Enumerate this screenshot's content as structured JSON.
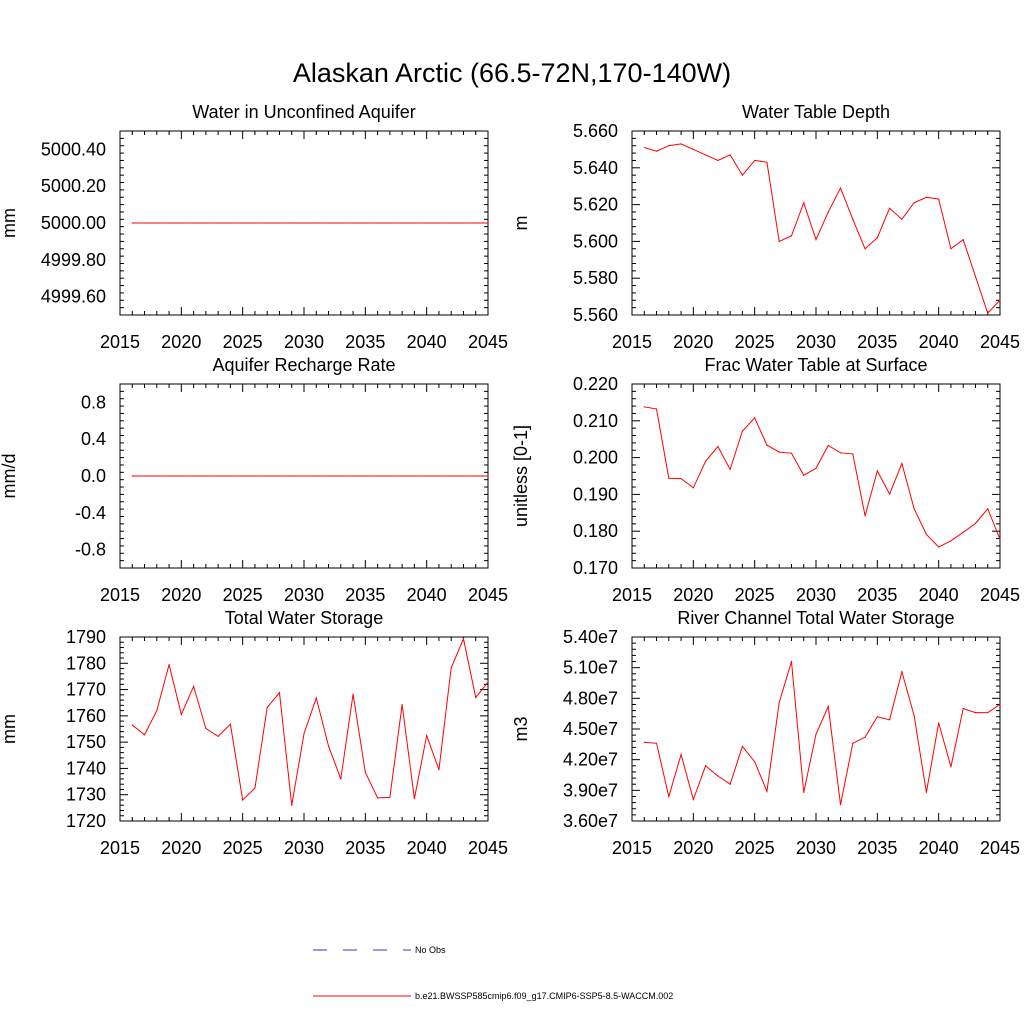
{
  "figure": {
    "title": "Alaskan Arctic (66.5-72N,170-140W)",
    "legend": [
      {
        "label": "No Obs",
        "color": "#3a3aa8",
        "style": "dashed"
      },
      {
        "label": "b.e21.BWSSP585cmip6.f09_g17.CMIP6-SSP5-8.5-WACCM.002",
        "color": "#ff0000",
        "style": "solid"
      }
    ]
  },
  "chart_data": [
    {
      "type": "line",
      "title": "Water in Unconfined Aquifer",
      "ylabel": "mm",
      "xlabel": "",
      "xlim": [
        2015,
        2045
      ],
      "ylim": [
        4999.5,
        5000.5
      ],
      "xticks": [
        2015,
        2020,
        2025,
        2030,
        2035,
        2040,
        2045
      ],
      "yticks": [
        4999.6,
        4999.8,
        5000.0,
        5000.2,
        5000.4
      ],
      "ytick_labels": [
        "4999.60",
        "4999.80",
        "5000.00",
        "5000.20",
        "5000.40"
      ],
      "x": [
        2016,
        2017,
        2018,
        2019,
        2020,
        2021,
        2022,
        2023,
        2024,
        2025,
        2026,
        2027,
        2028,
        2029,
        2030,
        2031,
        2032,
        2033,
        2034,
        2035,
        2036,
        2037,
        2038,
        2039,
        2040,
        2041,
        2042,
        2043,
        2044,
        2045
      ],
      "series": [
        {
          "color": "#ff0000",
          "values": [
            5000,
            5000,
            5000,
            5000,
            5000,
            5000,
            5000,
            5000,
            5000,
            5000,
            5000,
            5000,
            5000,
            5000,
            5000,
            5000,
            5000,
            5000,
            5000,
            5000,
            5000,
            5000,
            5000,
            5000,
            5000,
            5000,
            5000,
            5000,
            5000,
            5000
          ]
        }
      ]
    },
    {
      "type": "line",
      "title": "Water Table Depth",
      "ylabel": "m",
      "xlabel": "",
      "xlim": [
        2015,
        2045
      ],
      "ylim": [
        5.56,
        5.66
      ],
      "xticks": [
        2015,
        2020,
        2025,
        2030,
        2035,
        2040,
        2045
      ],
      "yticks": [
        5.56,
        5.58,
        5.6,
        5.62,
        5.64,
        5.66
      ],
      "ytick_labels": [
        "5.560",
        "5.580",
        "5.600",
        "5.620",
        "5.640",
        "5.660"
      ],
      "x": [
        2016,
        2017,
        2018,
        2019,
        2020,
        2021,
        2022,
        2023,
        2024,
        2025,
        2026,
        2027,
        2028,
        2029,
        2030,
        2031,
        2032,
        2033,
        2034,
        2035,
        2036,
        2037,
        2038,
        2039,
        2040,
        2041,
        2042,
        2043,
        2044,
        2045
      ],
      "series": [
        {
          "color": "#ff0000",
          "values": [
            5.651,
            5.649,
            5.652,
            5.653,
            5.65,
            5.647,
            5.644,
            5.647,
            5.636,
            5.644,
            5.643,
            5.6,
            5.603,
            5.621,
            5.601,
            5.616,
            5.629,
            5.612,
            5.596,
            5.602,
            5.618,
            5.612,
            5.621,
            5.624,
            5.623,
            5.596,
            5.601,
            5.581,
            5.561,
            5.568
          ]
        }
      ]
    },
    {
      "type": "line",
      "title": "Aquifer Recharge Rate",
      "ylabel": "mm/d",
      "xlabel": "",
      "xlim": [
        2015,
        2045
      ],
      "ylim": [
        -1.0,
        1.0
      ],
      "xticks": [
        2015,
        2020,
        2025,
        2030,
        2035,
        2040,
        2045
      ],
      "yticks": [
        -0.8,
        -0.4,
        0.0,
        0.4,
        0.8
      ],
      "ytick_labels": [
        "-0.8",
        "-0.4",
        "0.0",
        "0.4",
        "0.8"
      ],
      "x": [
        2016,
        2017,
        2018,
        2019,
        2020,
        2021,
        2022,
        2023,
        2024,
        2025,
        2026,
        2027,
        2028,
        2029,
        2030,
        2031,
        2032,
        2033,
        2034,
        2035,
        2036,
        2037,
        2038,
        2039,
        2040,
        2041,
        2042,
        2043,
        2044,
        2045
      ],
      "series": [
        {
          "color": "#ff0000",
          "values": [
            0,
            0,
            0,
            0,
            0,
            0,
            0,
            0,
            0,
            0,
            0,
            0,
            0,
            0,
            0,
            0,
            0,
            0,
            0,
            0,
            0,
            0,
            0,
            0,
            0,
            0,
            0,
            0,
            0,
            0
          ]
        }
      ]
    },
    {
      "type": "line",
      "title": "Frac Water Table at Surface",
      "ylabel": "unitless [0-1]",
      "xlabel": "",
      "xlim": [
        2015,
        2045
      ],
      "ylim": [
        0.17,
        0.22
      ],
      "xticks": [
        2015,
        2020,
        2025,
        2030,
        2035,
        2040,
        2045
      ],
      "yticks": [
        0.17,
        0.18,
        0.19,
        0.2,
        0.21,
        0.22
      ],
      "ytick_labels": [
        "0.170",
        "0.180",
        "0.190",
        "0.200",
        "0.210",
        "0.220"
      ],
      "x": [
        2016,
        2017,
        2018,
        2019,
        2020,
        2021,
        2022,
        2023,
        2024,
        2025,
        2026,
        2027,
        2028,
        2029,
        2030,
        2031,
        2032,
        2033,
        2034,
        2035,
        2036,
        2037,
        2038,
        2039,
        2040,
        2041,
        2042,
        2043,
        2044,
        2045
      ],
      "series": [
        {
          "color": "#ff0000",
          "values": [
            0.2138,
            0.2132,
            0.1944,
            0.1943,
            0.1918,
            0.199,
            0.203,
            0.1968,
            0.2072,
            0.2108,
            0.2034,
            0.2015,
            0.2012,
            0.1952,
            0.1971,
            0.2033,
            0.2013,
            0.201,
            0.1842,
            0.1964,
            0.1901,
            0.1984,
            0.1861,
            0.1791,
            0.1757,
            0.1774,
            0.1797,
            0.1821,
            0.1861,
            0.1778
          ]
        }
      ]
    },
    {
      "type": "line",
      "title": "Total Water Storage",
      "ylabel": "mm",
      "xlabel": "",
      "xlim": [
        2015,
        2045
      ],
      "ylim": [
        1720,
        1790
      ],
      "xticks": [
        2015,
        2020,
        2025,
        2030,
        2035,
        2040,
        2045
      ],
      "yticks": [
        1720,
        1730,
        1740,
        1750,
        1760,
        1770,
        1780,
        1790
      ],
      "ytick_labels": [
        "1720",
        "1730",
        "1740",
        "1750",
        "1760",
        "1770",
        "1780",
        "1790"
      ],
      "x": [
        2016,
        2017,
        2018,
        2019,
        2020,
        2021,
        2022,
        2023,
        2024,
        2025,
        2026,
        2027,
        2028,
        2029,
        2030,
        2031,
        2032,
        2033,
        2034,
        2035,
        2036,
        2037,
        2038,
        2039,
        2040,
        2041,
        2042,
        2043,
        2044,
        2045
      ],
      "series": [
        {
          "color": "#ff0000",
          "values": [
            1756.5,
            1752.8,
            1762.0,
            1779.5,
            1760.5,
            1771.2,
            1755.2,
            1752.2,
            1756.8,
            1728.0,
            1732.5,
            1763.2,
            1768.8,
            1726.0,
            1753.2,
            1766.8,
            1748.5,
            1736.0,
            1768.2,
            1738.5,
            1728.8,
            1729.0,
            1764.3,
            1728.5,
            1752.5,
            1739.5,
            1778.3,
            1789.3,
            1767.0,
            1772.8
          ]
        }
      ]
    },
    {
      "type": "line",
      "title": "River Channel Total Water Storage",
      "ylabel": "m3",
      "xlabel": "",
      "xlim": [
        2015,
        2045
      ],
      "ylim": [
        36000000,
        54000000
      ],
      "xticks": [
        2015,
        2020,
        2025,
        2030,
        2035,
        2040,
        2045
      ],
      "yticks": [
        36000000,
        39000000,
        42000000,
        45000000,
        48000000,
        51000000,
        54000000
      ],
      "ytick_labels": [
        "3.60e7",
        "3.90e7",
        "4.20e7",
        "4.50e7",
        "4.80e7",
        "5.10e7",
        "5.40e7"
      ],
      "x": [
        2016,
        2017,
        2018,
        2019,
        2020,
        2021,
        2022,
        2023,
        2024,
        2025,
        2026,
        2027,
        2028,
        2029,
        2030,
        2031,
        2032,
        2033,
        2034,
        2035,
        2036,
        2037,
        2038,
        2039,
        2040,
        2041,
        2042,
        2043,
        2044,
        2045
      ],
      "series": [
        {
          "color": "#ff0000",
          "values": [
            43700000,
            43600000,
            38400000,
            42500000,
            38100000,
            41400000,
            40400000,
            39600000,
            43300000,
            41800000,
            38900000,
            47600000,
            51600000,
            38800000,
            44500000,
            47200000,
            37600000,
            43600000,
            44200000,
            46200000,
            45900000,
            50600000,
            46300000,
            38800000,
            45600000,
            41300000,
            47000000,
            46600000,
            46600000,
            47400000
          ]
        }
      ]
    }
  ]
}
